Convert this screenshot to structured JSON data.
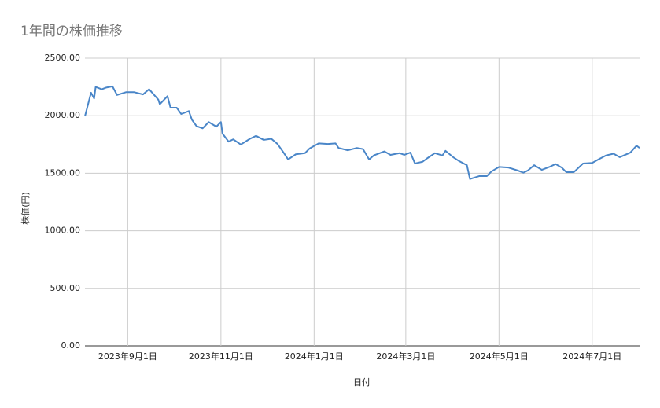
{
  "chart_data": {
    "type": "line",
    "title": "1年間の株価推移",
    "x_label": "日付",
    "y_label": "株価(円)",
    "x": [
      "2023-08-04",
      "2023-08-08",
      "2023-08-10",
      "2023-08-11",
      "2023-08-15",
      "2023-08-18",
      "2023-08-22",
      "2023-08-25",
      "2023-08-31",
      "2023-09-05",
      "2023-09-11",
      "2023-09-15",
      "2023-09-21",
      "2023-09-22",
      "2023-09-27",
      "2023-09-29",
      "2023-10-03",
      "2023-10-06",
      "2023-10-11",
      "2023-10-13",
      "2023-10-16",
      "2023-10-20",
      "2023-10-24",
      "2023-10-29",
      "2023-11-01",
      "2023-11-02",
      "2023-11-06",
      "2023-11-09",
      "2023-11-14",
      "2023-11-20",
      "2023-11-24",
      "2023-11-29",
      "2023-12-04",
      "2023-12-08",
      "2023-12-12",
      "2023-12-15",
      "2023-12-20",
      "2023-12-26",
      "2023-12-29",
      "2024-01-04",
      "2024-01-10",
      "2024-01-15",
      "2024-01-17",
      "2024-01-23",
      "2024-01-29",
      "2024-02-02",
      "2024-02-06",
      "2024-02-09",
      "2024-02-16",
      "2024-02-20",
      "2024-02-26",
      "2024-02-29",
      "2024-03-04",
      "2024-03-07",
      "2024-03-12",
      "2024-03-15",
      "2024-03-20",
      "2024-03-25",
      "2024-03-27",
      "2024-04-01",
      "2024-04-05",
      "2024-04-10",
      "2024-04-12",
      "2024-04-18",
      "2024-04-23",
      "2024-04-26",
      "2024-05-01",
      "2024-05-07",
      "2024-05-13",
      "2024-05-17",
      "2024-05-20",
      "2024-05-24",
      "2024-05-29",
      "2024-06-03",
      "2024-06-07",
      "2024-06-11",
      "2024-06-14",
      "2024-06-19",
      "2024-06-25",
      "2024-07-01",
      "2024-07-05",
      "2024-07-10",
      "2024-07-15",
      "2024-07-19",
      "2024-07-26",
      "2024-07-30",
      "2024-08-01"
    ],
    "series": [
      {
        "name": "株価",
        "color": "#4a86c8",
        "values": [
          1995,
          2200,
          2150,
          2250,
          2230,
          2245,
          2255,
          2180,
          2205,
          2205,
          2185,
          2230,
          2140,
          2100,
          2170,
          2070,
          2070,
          2015,
          2040,
          1965,
          1910,
          1890,
          1945,
          1905,
          1945,
          1845,
          1775,
          1795,
          1750,
          1800,
          1825,
          1790,
          1800,
          1755,
          1680,
          1620,
          1665,
          1675,
          1715,
          1760,
          1755,
          1760,
          1720,
          1700,
          1720,
          1710,
          1620,
          1655,
          1690,
          1660,
          1675,
          1660,
          1680,
          1585,
          1600,
          1630,
          1675,
          1655,
          1695,
          1640,
          1605,
          1570,
          1450,
          1475,
          1475,
          1515,
          1555,
          1550,
          1525,
          1505,
          1525,
          1570,
          1530,
          1555,
          1580,
          1550,
          1510,
          1510,
          1585,
          1590,
          1620,
          1655,
          1670,
          1640,
          1680,
          1740,
          1720
        ]
      }
    ],
    "xlim": [
      "2023-08-04",
      "2024-08-01"
    ],
    "xticks": [
      {
        "value": "2023-09-01",
        "label": "2023年9月1日"
      },
      {
        "value": "2023-11-01",
        "label": "2023年11月1日"
      },
      {
        "value": "2024-01-01",
        "label": "2024年1月1日"
      },
      {
        "value": "2024-03-01",
        "label": "2024年3月1日"
      },
      {
        "value": "2024-05-01",
        "label": "2024年5月1日"
      },
      {
        "value": "2024-07-01",
        "label": "2024年7月1日"
      }
    ],
    "ylim": [
      0,
      2500
    ],
    "yticks": [
      {
        "value": 0,
        "label": "0.00"
      },
      {
        "value": 500,
        "label": "500.00"
      },
      {
        "value": 1000,
        "label": "1000.00"
      },
      {
        "value": 1500,
        "label": "1500.00"
      },
      {
        "value": 2000,
        "label": "2000.00"
      },
      {
        "value": 2500,
        "label": "2500.00"
      }
    ],
    "grid": true
  }
}
